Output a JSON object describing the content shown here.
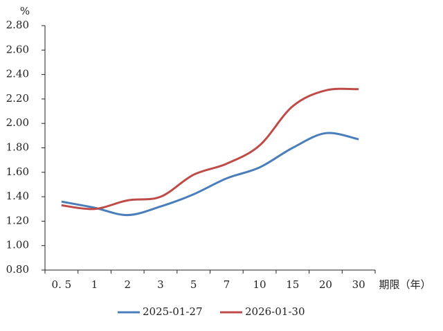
{
  "chart_data": {
    "type": "line",
    "y_unit": "%",
    "x_label": "期限（年）",
    "categories": [
      "0. 5",
      "1",
      "2",
      "3",
      "5",
      "7",
      "10",
      "15",
      "20",
      "30"
    ],
    "series": [
      {
        "name": "2025-01-27",
        "color": "#4a7ebb",
        "values": [
          1.36,
          1.31,
          1.25,
          1.32,
          1.42,
          1.55,
          1.64,
          1.8,
          1.92,
          1.87
        ]
      },
      {
        "name": "2026-01-30",
        "color": "#be4b48",
        "values": [
          1.33,
          1.3,
          1.37,
          1.4,
          1.58,
          1.67,
          1.82,
          2.14,
          2.27,
          2.28
        ]
      }
    ],
    "ylim": [
      0.8,
      2.8
    ],
    "yticks": [
      {
        "value": 0.8,
        "label": "0.80"
      },
      {
        "value": 1.0,
        "label": "1.00"
      },
      {
        "value": 1.2,
        "label": "1.20"
      },
      {
        "value": 1.4,
        "label": "1.40"
      },
      {
        "value": 1.6,
        "label": "1.60"
      },
      {
        "value": 1.8,
        "label": "1.80"
      },
      {
        "value": 2.0,
        "label": "2.00"
      },
      {
        "value": 2.2,
        "label": "2.20"
      },
      {
        "value": 2.4,
        "label": "2.40"
      },
      {
        "value": 2.6,
        "label": "2.60"
      },
      {
        "value": 2.8,
        "label": "2.80"
      }
    ],
    "smooth": true,
    "grid": false,
    "legend": "bottom"
  }
}
